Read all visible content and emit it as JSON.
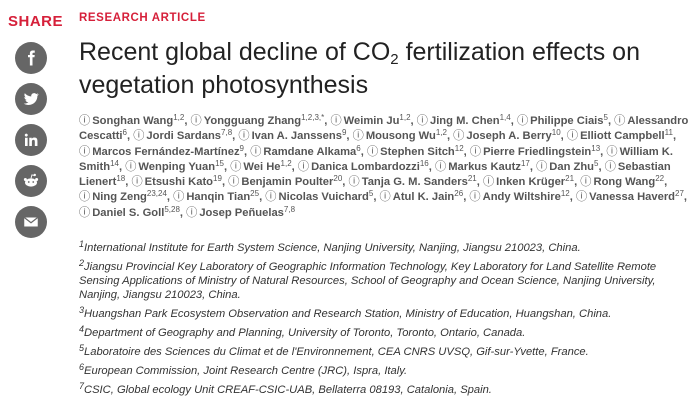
{
  "share": {
    "label": "SHARE",
    "buttons": [
      {
        "icon": "facebook-icon"
      },
      {
        "icon": "twitter-icon"
      },
      {
        "icon": "linkedin-icon"
      },
      {
        "icon": "reddit-icon"
      },
      {
        "icon": "email-icon"
      }
    ]
  },
  "article": {
    "kicker": "RESEARCH ARTICLE",
    "title_pre": "Recent global decline of CO",
    "title_sub": "2",
    "title_post": " fertilization effects on vegetation photosynthesis",
    "orcid_glyph": "ⓘ",
    "authors": [
      {
        "name": "Songhan Wang",
        "aff": "1,2",
        "sep": ","
      },
      {
        "name": "Yongguang Zhang",
        "aff": "1,2,3,*",
        "sep": ","
      },
      {
        "name": "Weimin Ju",
        "aff": "1,2",
        "sep": ","
      },
      {
        "name": "Jing M. Chen",
        "aff": "1,4",
        "sep": ","
      },
      {
        "name": "Philippe Ciais",
        "aff": "5",
        "sep": ","
      },
      {
        "name": "Alessandro Cescatti",
        "aff": "6",
        "sep": ","
      },
      {
        "name": "Jordi Sardans",
        "aff": "7,8",
        "sep": ","
      },
      {
        "name": "Ivan A. Janssens",
        "aff": "9",
        "sep": ","
      },
      {
        "name": "Mousong Wu",
        "aff": "1,2",
        "sep": ","
      },
      {
        "name": "Joseph A. Berry",
        "aff": "10",
        "sep": ","
      },
      {
        "name": "Elliott Campbell",
        "aff": "11",
        "sep": ","
      },
      {
        "name": "Marcos Fernández-Martínez",
        "aff": "9",
        "sep": ","
      },
      {
        "name": "Ramdane Alkama",
        "aff": "6",
        "sep": ","
      },
      {
        "name": "Stephen Sitch",
        "aff": "12",
        "sep": ","
      },
      {
        "name": "Pierre Friedlingstein",
        "aff": "13",
        "sep": ","
      },
      {
        "name": "William K. Smith",
        "aff": "14",
        "sep": ","
      },
      {
        "name": "Wenping Yuan",
        "aff": "15",
        "sep": ","
      },
      {
        "name": "Wei He",
        "aff": "1,2",
        "sep": ","
      },
      {
        "name": "Danica Lombardozzi",
        "aff": "16",
        "sep": ","
      },
      {
        "name": "Markus Kautz",
        "aff": "17",
        "sep": ","
      },
      {
        "name": "Dan Zhu",
        "aff": "5",
        "sep": ","
      },
      {
        "name": "Sebastian Lienert",
        "aff": "18",
        "sep": ","
      },
      {
        "name": "Etsushi Kato",
        "aff": "19",
        "sep": ","
      },
      {
        "name": "Benjamin Poulter",
        "aff": "20",
        "sep": ","
      },
      {
        "name": "Tanja G. M. Sanders",
        "aff": "21",
        "sep": ","
      },
      {
        "name": "Inken Krüger",
        "aff": "21",
        "sep": ","
      },
      {
        "name": "Rong Wang",
        "aff": "22",
        "sep": ","
      },
      {
        "name": "Ning Zeng",
        "aff": "23,24",
        "sep": ","
      },
      {
        "name": "Hanqin Tian",
        "aff": "25",
        "sep": ","
      },
      {
        "name": "Nicolas Vuichard",
        "aff": "5",
        "sep": ","
      },
      {
        "name": "Atul K. Jain",
        "aff": "26",
        "sep": ","
      },
      {
        "name": "Andy Wiltshire",
        "aff": "12",
        "sep": ","
      },
      {
        "name": "Vanessa Haverd",
        "aff": "27",
        "sep": ","
      },
      {
        "name": "Daniel S. Goll",
        "aff": "5,28",
        "sep": ","
      },
      {
        "name": "Josep Peñuelas",
        "aff": "7,8",
        "sep": ""
      }
    ],
    "affiliations": [
      {
        "num": "1",
        "text": "International Institute for Earth System Science, Nanjing University, Nanjing, Jiangsu 210023, China."
      },
      {
        "num": "2",
        "text": "Jiangsu Provincial Key Laboratory of Geographic Information Technology, Key Laboratory for Land Satellite Remote Sensing Applications of Ministry of Natural Resources, School of Geography and Ocean Science, Nanjing University, Nanjing, Jiangsu 210023, China."
      },
      {
        "num": "3",
        "text": "Huangshan Park Ecosystem Observation and Research Station, Ministry of Education, Huangshan, China."
      },
      {
        "num": "4",
        "text": "Department of Geography and Planning, University of Toronto, Toronto, Ontario, Canada."
      },
      {
        "num": "5",
        "text": "Laboratoire des Sciences du Climat et de l'Environnement, CEA CNRS UVSQ, Gif-sur-Yvette, France."
      },
      {
        "num": "6",
        "text": "European Commission, Joint Research Centre (JRC), Ispra, Italy."
      },
      {
        "num": "7",
        "text": "CSIC, Global ecology Unit CREAF-CSIC-UAB, Bellaterra 08193, Catalonia, Spain."
      }
    ]
  }
}
